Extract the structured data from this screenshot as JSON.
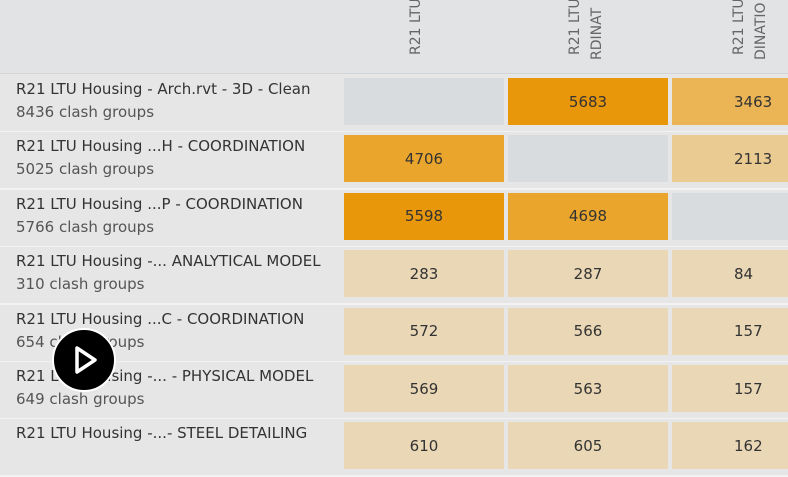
{
  "columns": [
    {
      "lines": [
        "R21 LTU"
      ]
    },
    {
      "lines": [
        "R21 LTU...",
        "RDINAT"
      ]
    },
    {
      "lines": [
        "R21 LTU",
        "DINATIO"
      ]
    }
  ],
  "rows": [
    {
      "title": "R21 LTU Housing - Arch.rvt - 3D - Clean",
      "count": "8436 clash groups",
      "values": [
        "",
        "5683",
        "3463"
      ],
      "colors": [
        "#d9dcdf",
        "#e8960a",
        "#ebb556"
      ]
    },
    {
      "title": "R21 LTU Housing ...H - COORDINATION",
      "count": "5025 clash groups",
      "values": [
        "4706",
        "",
        "2113"
      ],
      "colors": [
        "#eaa62c",
        "#d9dcdf",
        "#eacb92"
      ]
    },
    {
      "title": "R21 LTU Housing ...P - COORDINATION",
      "count": "5766 clash groups",
      "values": [
        "5598",
        "4698",
        ""
      ],
      "colors": [
        "#e8960a",
        "#eaa62c",
        "#d9dcdf"
      ]
    },
    {
      "title": "R21 LTU Housing -... ANALYTICAL MODEL",
      "count": "310 clash groups",
      "values": [
        "283",
        "287",
        "84"
      ],
      "colors": [
        "#e9d7b5",
        "#e9d7b5",
        "#e9d7b5"
      ]
    },
    {
      "title": "R21 LTU Housing ...C - COORDINATION",
      "count": "654 clash groups",
      "values": [
        "572",
        "566",
        "157"
      ],
      "colors": [
        "#e9d7b5",
        "#e9d7b5",
        "#e9d7b5"
      ]
    },
    {
      "title": "R21 LTU Housing -... - PHYSICAL MODEL",
      "count": "649 clash groups",
      "values": [
        "569",
        "563",
        "157"
      ],
      "colors": [
        "#e9d7b5",
        "#e9d7b5",
        "#e9d7b5"
      ]
    },
    {
      "title": "R21 LTU Housing -...- STEEL DETAILING",
      "count": "",
      "values": [
        "610",
        "605",
        "162"
      ],
      "colors": [
        "#e9d7b5",
        "#e9d7b5",
        "#e9d7b5"
      ]
    }
  ],
  "play_icon": "play-icon"
}
